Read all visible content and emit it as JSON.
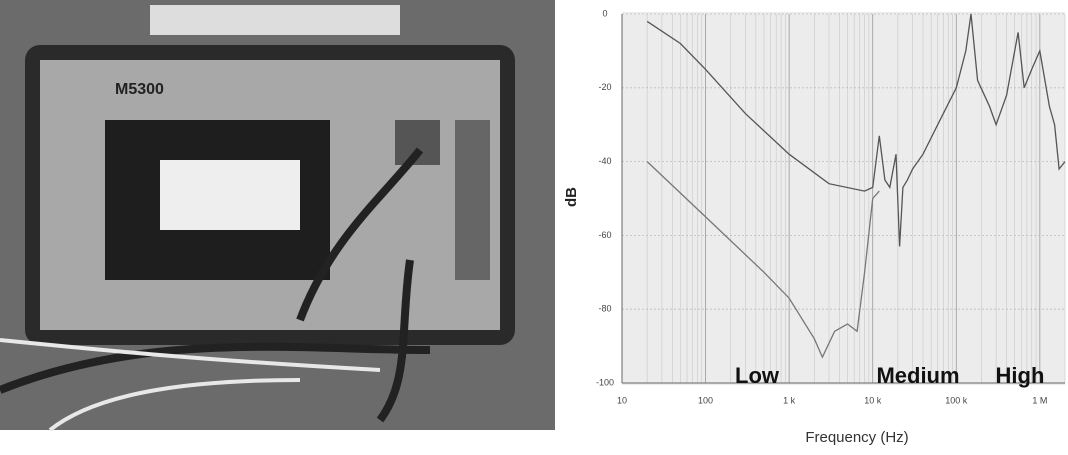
{
  "photo_label": "M5300",
  "chart_data": {
    "type": "line",
    "x_label": "Frequency (Hz)",
    "y_label": "dB",
    "annotations": [
      "Low",
      "Medium",
      "High"
    ],
    "log_x": true,
    "grid": true,
    "xlim": [
      10,
      2000000
    ],
    "ylim": [
      -100,
      0
    ],
    "xticks": [
      10,
      100,
      {
        "value": 1000,
        "label": "1 k"
      },
      {
        "value": 10000,
        "label": "10 k"
      },
      {
        "value": 100000,
        "label": "100 k"
      },
      {
        "value": 1000000,
        "label": "1 M"
      }
    ],
    "yticks": [
      0,
      -20,
      -40,
      -60,
      -80,
      -100
    ],
    "series": [
      {
        "color": "#555555",
        "x": [
          20,
          50,
          100,
          300,
          1000,
          3000,
          8000,
          10000,
          12000,
          14000,
          16000,
          19000,
          21000,
          23000,
          26000,
          30000,
          40000,
          60000,
          100000,
          130000,
          150000,
          180000,
          250000,
          300000,
          400000,
          550000,
          650000,
          800000,
          1000000,
          1300000,
          1500000,
          1700000,
          2000000
        ],
        "values": [
          -2,
          -8,
          -15,
          -27,
          -38,
          -46,
          -48,
          -47,
          -33,
          -45,
          -47,
          -38,
          -63,
          -47,
          -45,
          -42,
          -38,
          -30,
          -20,
          -10,
          0,
          -18,
          -25,
          -30,
          -22,
          -5,
          -20,
          -15,
          -10,
          -25,
          -30,
          -42,
          -40
        ]
      },
      {
        "color": "#777777",
        "x": [
          20,
          100,
          500,
          1000,
          2000,
          2500,
          3500,
          5000,
          6500,
          8000,
          10000,
          12000
        ],
        "values": [
          -40,
          -55,
          -70,
          -77,
          -88,
          -93,
          -86,
          -84,
          -86,
          -70,
          -50,
          -48
        ]
      }
    ]
  }
}
